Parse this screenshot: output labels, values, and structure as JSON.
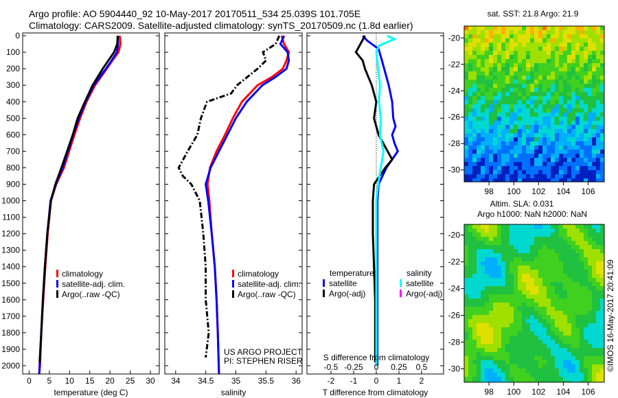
{
  "header": {
    "line1": "Argo profile: AO 5904440_92 10-May-2017 20170511_534 25.039S 101.705E",
    "line2": "Climatology: CARS2009. Satellite-adjusted climatology: synTS_20170509.nc (1.8d earlier)"
  },
  "colors": {
    "clim": "#ff0000",
    "sat": "#0000ff",
    "argo": "#000000",
    "sal_sat": "#00ffff",
    "sal_argo": "#ff00ff"
  },
  "chart_data": [
    {
      "type": "line",
      "title": "",
      "xlabel": "temperature (deg C)",
      "ylabel": "",
      "xlim": [
        -1.6,
        32.2
      ],
      "ylim": [
        2050,
        -17
      ],
      "xticks": [
        "0",
        "5",
        "10",
        "15",
        "20",
        "25",
        "30"
      ],
      "xtick_values": [
        0,
        5,
        10,
        15,
        20,
        25,
        30
      ],
      "yticks": [
        "0",
        "100",
        "200",
        "300",
        "400",
        "500",
        "600",
        "700",
        "800",
        "900",
        "1000",
        "1100",
        "1200",
        "1300",
        "1400",
        "1500",
        "1600",
        "1700",
        "1800",
        "1900",
        "2000"
      ],
      "legend": [
        "climatology",
        "satellite-adj. clim.",
        "Argo(..raw -QC)"
      ],
      "series": [
        {
          "name": "climatology",
          "color": "#ff0000",
          "depth": [
            0,
            50,
            100,
            150,
            200,
            300,
            400,
            500,
            600,
            700,
            800,
            900,
            1000,
            1200,
            1400,
            1600,
            1800,
            2000,
            2050
          ],
          "values": [
            22.4,
            22.6,
            22.1,
            20.6,
            19.2,
            16.3,
            14.2,
            12.6,
            11.2,
            9.9,
            8.6,
            6.7,
            5.4,
            4.6,
            4.0,
            3.5,
            3.0,
            2.7,
            2.5
          ]
        },
        {
          "name": "satellite-adj. clim.",
          "color": "#0000ff",
          "depth": [
            0,
            50,
            100,
            150,
            200,
            300,
            400,
            500,
            600,
            700,
            800,
            900,
            1000,
            1200,
            1400,
            1600,
            1800,
            2000,
            2050
          ],
          "values": [
            21.9,
            22.0,
            21.7,
            20.4,
            19.0,
            16.0,
            14.0,
            12.3,
            10.9,
            9.6,
            8.3,
            6.6,
            5.3,
            4.5,
            3.9,
            3.4,
            3.0,
            2.6,
            2.5
          ]
        },
        {
          "name": "Argo(..raw -QC)",
          "color": "#000000",
          "depth": [
            0,
            50,
            100,
            150,
            200,
            300,
            400,
            500,
            600,
            700,
            800,
            900,
            1000,
            1200,
            1400,
            1600,
            1800,
            1980
          ],
          "values": [
            21.9,
            21.8,
            21.0,
            19.6,
            18.2,
            15.7,
            13.8,
            12.0,
            10.8,
            9.4,
            8.0,
            6.5,
            5.4,
            4.5,
            3.9,
            3.4,
            3.0,
            2.6
          ]
        }
      ]
    },
    {
      "type": "line",
      "xlabel": "salinity",
      "ylabel": "",
      "xlim": [
        33.82,
        36.1
      ],
      "ylim": [
        2050,
        -17
      ],
      "xticks": [
        "34",
        "34.5",
        "35",
        "35.5",
        "36"
      ],
      "xtick_values": [
        34,
        34.5,
        35,
        35.5,
        36
      ],
      "legend": [
        "climatology",
        "satellite-adj. clim.",
        "Argo(..raw -QC)"
      ],
      "annotation": [
        "US ARGO PROJECT",
        "PI: STEPHEN RISER"
      ],
      "series": [
        {
          "name": "climatology",
          "color": "#ff0000",
          "depth": [
            0,
            50,
            100,
            150,
            200,
            250,
            300,
            400,
            500,
            600,
            700,
            800,
            900,
            1000,
            1200,
            1400,
            1600,
            1800,
            2050
          ],
          "values": [
            35.76,
            35.8,
            35.88,
            35.84,
            35.78,
            35.6,
            35.36,
            35.1,
            34.95,
            34.82,
            34.68,
            34.57,
            34.53,
            34.56,
            34.6,
            34.65,
            34.68,
            34.7,
            34.72
          ]
        },
        {
          "name": "satellite-adj. clim.",
          "color": "#0000ff",
          "depth": [
            0,
            50,
            100,
            150,
            200,
            250,
            300,
            400,
            500,
            600,
            700,
            800,
            900,
            1000,
            1200,
            1400,
            1600,
            1800,
            2050
          ],
          "values": [
            35.8,
            35.74,
            35.86,
            35.88,
            35.84,
            35.66,
            35.44,
            35.18,
            35.0,
            34.86,
            34.72,
            34.58,
            34.5,
            34.54,
            34.6,
            34.65,
            34.68,
            34.7,
            34.72
          ]
        },
        {
          "name": "Argo(..raw -QC)",
          "color": "#000000",
          "depth": [
            0,
            50,
            100,
            150,
            200,
            300,
            350,
            400,
            500,
            600,
            700,
            800,
            850,
            900,
            1000,
            1200,
            1400,
            1600,
            1800,
            1950
          ],
          "values": [
            35.72,
            35.66,
            35.45,
            35.5,
            35.36,
            35.02,
            34.92,
            34.52,
            34.42,
            34.36,
            34.2,
            34.05,
            34.12,
            34.26,
            34.4,
            34.46,
            34.5,
            34.5,
            34.55,
            34.5
          ]
        }
      ]
    },
    {
      "type": "line",
      "xlabel": "T difference from climatology",
      "x2label": "S difference from climatology",
      "xlim": [
        -3.06,
        2.97
      ],
      "ylim": [
        2050,
        -17
      ],
      "xticks": [
        "-2",
        "-1",
        "0",
        "1",
        "2"
      ],
      "xtick_values": [
        -2,
        -1,
        0,
        1,
        2
      ],
      "x2ticks": [
        "-0.5",
        "-0.25",
        "0",
        "0.25",
        "0.5"
      ],
      "x2tick_values": [
        -0.5,
        -0.25,
        0,
        0.25,
        0.5
      ],
      "legend_groups": [
        {
          "title": "temperature",
          "items": [
            "satellite",
            "Argo(-adj)"
          ]
        },
        {
          "title": "salinity",
          "items": [
            "satellite",
            "Argo(-adj)"
          ]
        }
      ],
      "series": [
        {
          "name": "T satellite",
          "color": "#0000ff",
          "depth": [
            0,
            30,
            80,
            150,
            250,
            300,
            400,
            500,
            550,
            600,
            650,
            700,
            750,
            800,
            900,
            1000,
            1200,
            1500,
            2000
          ],
          "values": [
            -0.6,
            -0.4,
            0.1,
            0.25,
            0.45,
            0.55,
            0.7,
            0.75,
            0.85,
            0.7,
            0.8,
            0.95,
            0.7,
            0.45,
            0.1,
            0.05,
            0.05,
            0.05,
            0.05
          ]
        },
        {
          "name": "T Argo(-adj)",
          "color": "#000000",
          "depth": [
            0,
            50,
            100,
            150,
            200,
            300,
            400,
            500,
            600,
            700,
            750,
            800,
            900,
            1000,
            1200,
            1400,
            1600,
            1800,
            1980
          ],
          "values": [
            -0.5,
            -0.7,
            -0.9,
            -0.6,
            -0.5,
            -0.2,
            0.0,
            -0.1,
            0.1,
            0.5,
            0.7,
            0.4,
            -0.1,
            -0.15,
            -0.15,
            -0.1,
            -0.05,
            -0.05,
            -0.05
          ]
        },
        {
          "name": "S satellite",
          "color": "#00ffff",
          "depth": [
            0,
            20,
            60,
            100,
            200,
            300,
            400,
            500,
            600,
            700,
            800,
            900,
            1000,
            1200,
            1500,
            2000
          ],
          "values": [
            0.12,
            0.2,
            0.03,
            0.0,
            0.02,
            0.04,
            0.03,
            0.05,
            0.04,
            0.08,
            0.05,
            0.02,
            0.0,
            0.0,
            0.0,
            0.0
          ]
        }
      ]
    },
    {
      "type": "heatmap",
      "title": "sat. SST: 21.8 Argo: 21.9",
      "xlim": [
        96.0,
        107.3
      ],
      "ylim": [
        -30.9,
        -19.1
      ],
      "xticks": [
        "98",
        "100",
        "102",
        "104",
        "106"
      ],
      "xtick_values": [
        98,
        100,
        102,
        104,
        106
      ],
      "yticks": [
        "-20",
        "-22",
        "-24",
        "-26",
        "-28",
        "-30"
      ],
      "ytick_values": [
        -20,
        -22,
        -24,
        -26,
        -28,
        -30
      ]
    },
    {
      "type": "heatmap",
      "title": "Altim. SLA: 0.031",
      "subtitle": "Argo h1000: NaN h2000: NaN",
      "xlim": [
        96.0,
        107.3
      ],
      "ylim": [
        -31.0,
        -19.2
      ],
      "xticks": [
        "98",
        "100",
        "102",
        "104",
        "106"
      ],
      "xtick_values": [
        98,
        100,
        102,
        104,
        106
      ],
      "yticks": [
        "-20",
        "-22",
        "-24",
        "-26",
        "-28",
        "-30"
      ],
      "ytick_values": [
        -20,
        -22,
        -24,
        -26,
        -28,
        -30
      ]
    }
  ],
  "footer": {
    "credit": "©IMOS 16-May-2017 20:41:09"
  }
}
